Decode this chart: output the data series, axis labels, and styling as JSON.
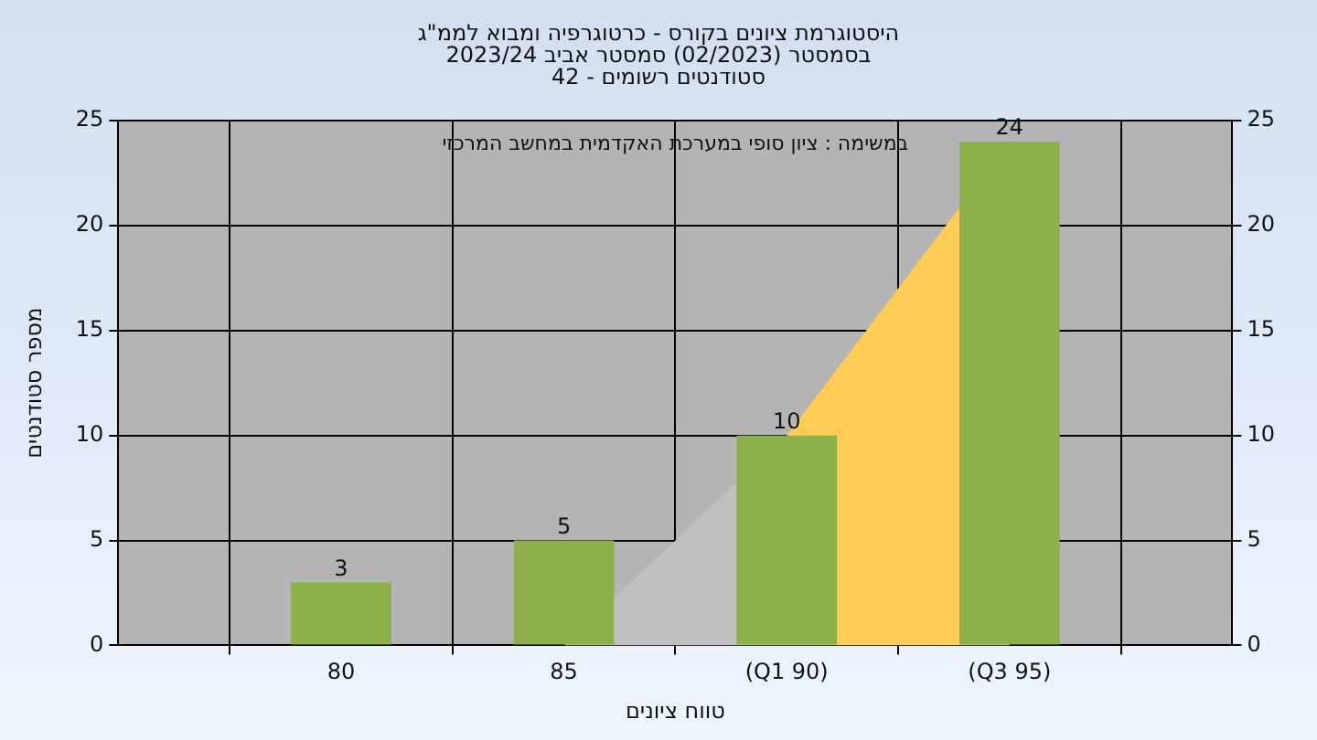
{
  "chart_data": {
    "type": "bar",
    "title": "היסטוגרמת ציונים בקורס - כרטוגרפיה ומבוא לממ\"ג",
    "subtitle": "בסמסטר  (02/2023)  סמסטר אביב 2023/24\nסטודנטים רשומים - 42",
    "xlabel": "טווח ציונים",
    "ylabel": "מספר סטודנטים",
    "annotations": [
      "במשימה : ציון סופי במערכת האקדמית במחשב המרכזי"
    ],
    "categories": [
      null,
      "80",
      "85",
      "(Q1 90)",
      "(Q3 95)",
      null
    ],
    "series": [
      {
        "type": "area",
        "color": "#c0c0c0",
        "values": [
          null,
          null,
          0,
          10,
          null,
          null
        ]
      },
      {
        "type": "area",
        "color": "#ffcc55",
        "values": [
          null,
          null,
          null,
          10,
          24,
          null
        ]
      },
      {
        "color": "#8db04a",
        "values": [
          null,
          3,
          5,
          10,
          24,
          null
        ],
        "value_labels": [
          null,
          "3",
          "5",
          "10",
          "24",
          null
        ]
      }
    ],
    "ylim": [
      0,
      25
    ],
    "yticks": [
      0,
      5,
      10,
      15,
      20,
      25
    ],
    "y2lim": [
      0,
      25
    ],
    "y2ticks": [
      0,
      5,
      10,
      15,
      20,
      25
    ],
    "grid": true,
    "legend": false
  }
}
